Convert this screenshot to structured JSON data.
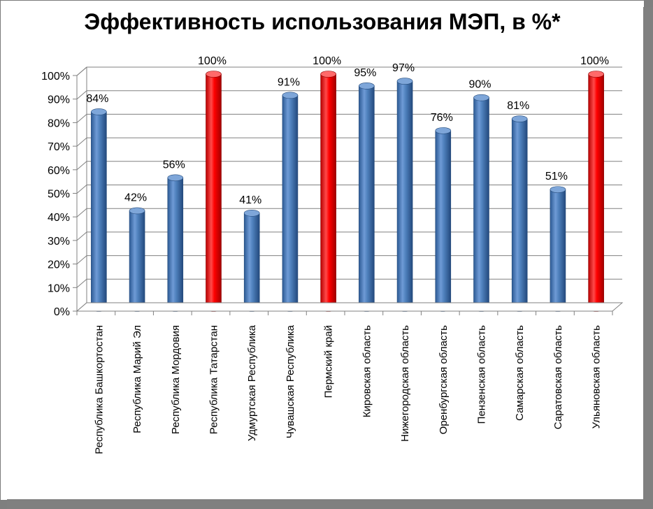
{
  "chart_data": {
    "type": "bar",
    "title": "Эффективность использования МЭП, в %*",
    "xlabel": "",
    "ylabel": "",
    "ylim": [
      0,
      100
    ],
    "yticks": [
      "0%",
      "10%",
      "20%",
      "30%",
      "40%",
      "50%",
      "60%",
      "70%",
      "80%",
      "90%",
      "100%"
    ],
    "grid": true,
    "categories": [
      "Республика Башкортостан",
      "Республика Марий Эл",
      "Республика Мордовия",
      "Республика Татарстан",
      "Удмуртская Республика",
      "Чувашская Республика",
      "Пермский край",
      "Кировская область",
      "Нижегородская область",
      "Оренбургская область",
      "Пензенская область",
      "Самарская область",
      "Саратовская область",
      "Ульяновская область"
    ],
    "values": [
      84,
      42,
      56,
      100,
      41,
      91,
      100,
      95,
      97,
      76,
      90,
      81,
      51,
      100
    ],
    "data_labels": [
      "84%",
      "42%",
      "56%",
      "100%",
      "41%",
      "91%",
      "100%",
      "95%",
      "97%",
      "76%",
      "90%",
      "81%",
      "51%",
      "100%"
    ],
    "colors": {
      "default": "#4f81bd",
      "highlight": "#ff0000"
    },
    "highlighted": [
      false,
      false,
      false,
      true,
      false,
      false,
      true,
      false,
      false,
      false,
      false,
      false,
      false,
      true
    ]
  }
}
